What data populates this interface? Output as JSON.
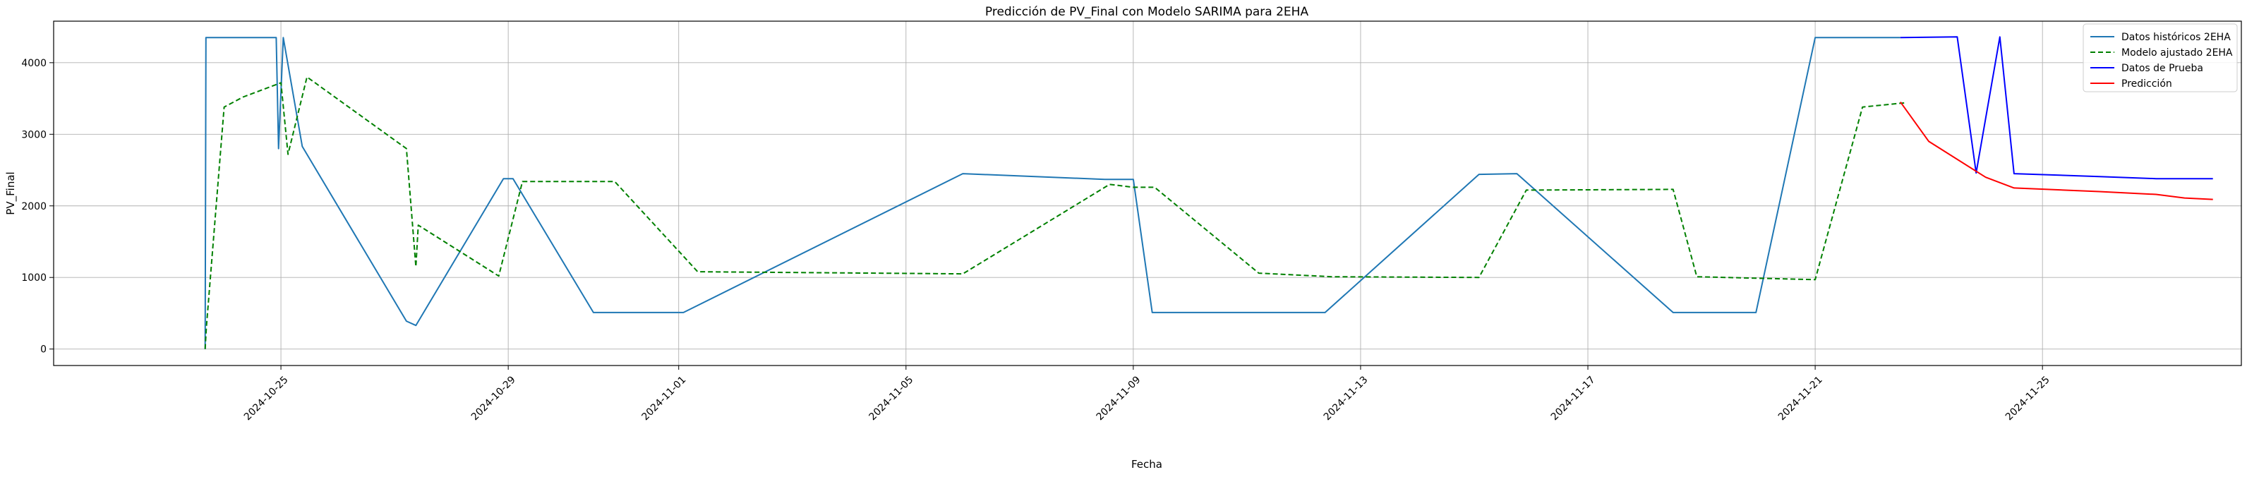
{
  "chart_data": {
    "type": "line",
    "title": "Predicción de PV_Final con Modelo SARIMA para 2EHA",
    "xlabel": "Fecha",
    "ylabel": "PV_Final",
    "xlim": [
      "2024-10-21T00:00",
      "2024-11-28T12:00"
    ],
    "ylim": [
      -230,
      4580
    ],
    "x_ticks": [
      "2024-10-25",
      "2024-10-29",
      "2024-11-01",
      "2024-11-05",
      "2024-11-09",
      "2024-11-13",
      "2024-11-17",
      "2024-11-21",
      "2024-11-25"
    ],
    "y_ticks": [
      0,
      1000,
      2000,
      3000,
      4000
    ],
    "grid": true,
    "legend_position": "top-right",
    "series": [
      {
        "name": "Datos históricos 2EHA",
        "color": "#1f77b4",
        "style": "solid",
        "points": [
          [
            "2024-10-23T16:00",
            0
          ],
          [
            "2024-10-23T16:20",
            4350
          ],
          [
            "2024-10-24T22:00",
            4350
          ],
          [
            "2024-10-24T23:00",
            2800
          ],
          [
            "2024-10-25T01:00",
            4350
          ],
          [
            "2024-10-25T09:00",
            2830
          ],
          [
            "2024-10-27T05:00",
            390
          ],
          [
            "2024-10-27T09:00",
            330
          ],
          [
            "2024-10-28T22:00",
            2380
          ],
          [
            "2024-10-29T02:00",
            2380
          ],
          [
            "2024-10-30T12:00",
            510
          ],
          [
            "2024-11-01T02:00",
            510
          ],
          [
            "2024-11-06T00:00",
            2450
          ],
          [
            "2024-11-08T12:00",
            2370
          ],
          [
            "2024-11-09T00:00",
            2370
          ],
          [
            "2024-11-09T08:00",
            510
          ],
          [
            "2024-11-11T15:00",
            510
          ],
          [
            "2024-11-12T09:00",
            510
          ],
          [
            "2024-11-15T02:00",
            2440
          ],
          [
            "2024-11-15T18:00",
            2450
          ],
          [
            "2024-11-18T12:00",
            510
          ],
          [
            "2024-11-19T23:00",
            510
          ],
          [
            "2024-11-21T00:00",
            4350
          ],
          [
            "2024-11-22T12:00",
            4350
          ]
        ]
      },
      {
        "name": "Modelo ajustado 2EHA",
        "color": "#008000",
        "style": "dashed",
        "points": [
          [
            "2024-10-23T16:00",
            0
          ],
          [
            "2024-10-23T16:30",
            300
          ],
          [
            "2024-10-24T00:00",
            3380
          ],
          [
            "2024-10-24T08:00",
            3520
          ],
          [
            "2024-10-25T00:00",
            3720
          ],
          [
            "2024-10-25T03:00",
            2720
          ],
          [
            "2024-10-25T11:00",
            3800
          ],
          [
            "2024-10-27T05:00",
            2800
          ],
          [
            "2024-10-27T09:00",
            1150
          ],
          [
            "2024-10-27T10:00",
            1730
          ],
          [
            "2024-10-28T20:00",
            1020
          ],
          [
            "2024-10-29T06:00",
            2340
          ],
          [
            "2024-10-30T21:00",
            2340
          ],
          [
            "2024-11-01T08:00",
            1080
          ],
          [
            "2024-11-06T00:00",
            1050
          ],
          [
            "2024-11-08T14:00",
            2300
          ],
          [
            "2024-11-09T00:00",
            2260
          ],
          [
            "2024-11-09T09:00",
            2260
          ],
          [
            "2024-11-11T05:00",
            1060
          ],
          [
            "2024-11-12T12:00",
            1010
          ],
          [
            "2024-11-15T02:00",
            1000
          ],
          [
            "2024-11-15T22:00",
            2220
          ],
          [
            "2024-11-18T12:00",
            2230
          ],
          [
            "2024-11-18T22:00",
            1010
          ],
          [
            "2024-11-21T00:00",
            970
          ],
          [
            "2024-11-21T20:00",
            3380
          ],
          [
            "2024-11-22T14:00",
            3440
          ]
        ]
      },
      {
        "name": "Datos de Prueba",
        "color": "#0000ff",
        "style": "solid",
        "points": [
          [
            "2024-11-22T12:00",
            4350
          ],
          [
            "2024-11-23T12:00",
            4360
          ],
          [
            "2024-11-23T20:00",
            2460
          ],
          [
            "2024-11-24T06:00",
            4360
          ],
          [
            "2024-11-24T12:00",
            2450
          ],
          [
            "2024-11-26T00:00",
            2410
          ],
          [
            "2024-11-27T00:00",
            2380
          ],
          [
            "2024-11-28T00:00",
            2380
          ]
        ]
      },
      {
        "name": "Predicción",
        "color": "#ff0000",
        "style": "solid",
        "points": [
          [
            "2024-11-22T12:00",
            3450
          ],
          [
            "2024-11-23T00:00",
            2900
          ],
          [
            "2024-11-24T00:00",
            2400
          ],
          [
            "2024-11-24T12:00",
            2250
          ],
          [
            "2024-11-26T00:00",
            2200
          ],
          [
            "2024-11-27T00:00",
            2160
          ],
          [
            "2024-11-27T12:00",
            2110
          ],
          [
            "2024-11-28T00:00",
            2090
          ]
        ]
      }
    ]
  }
}
